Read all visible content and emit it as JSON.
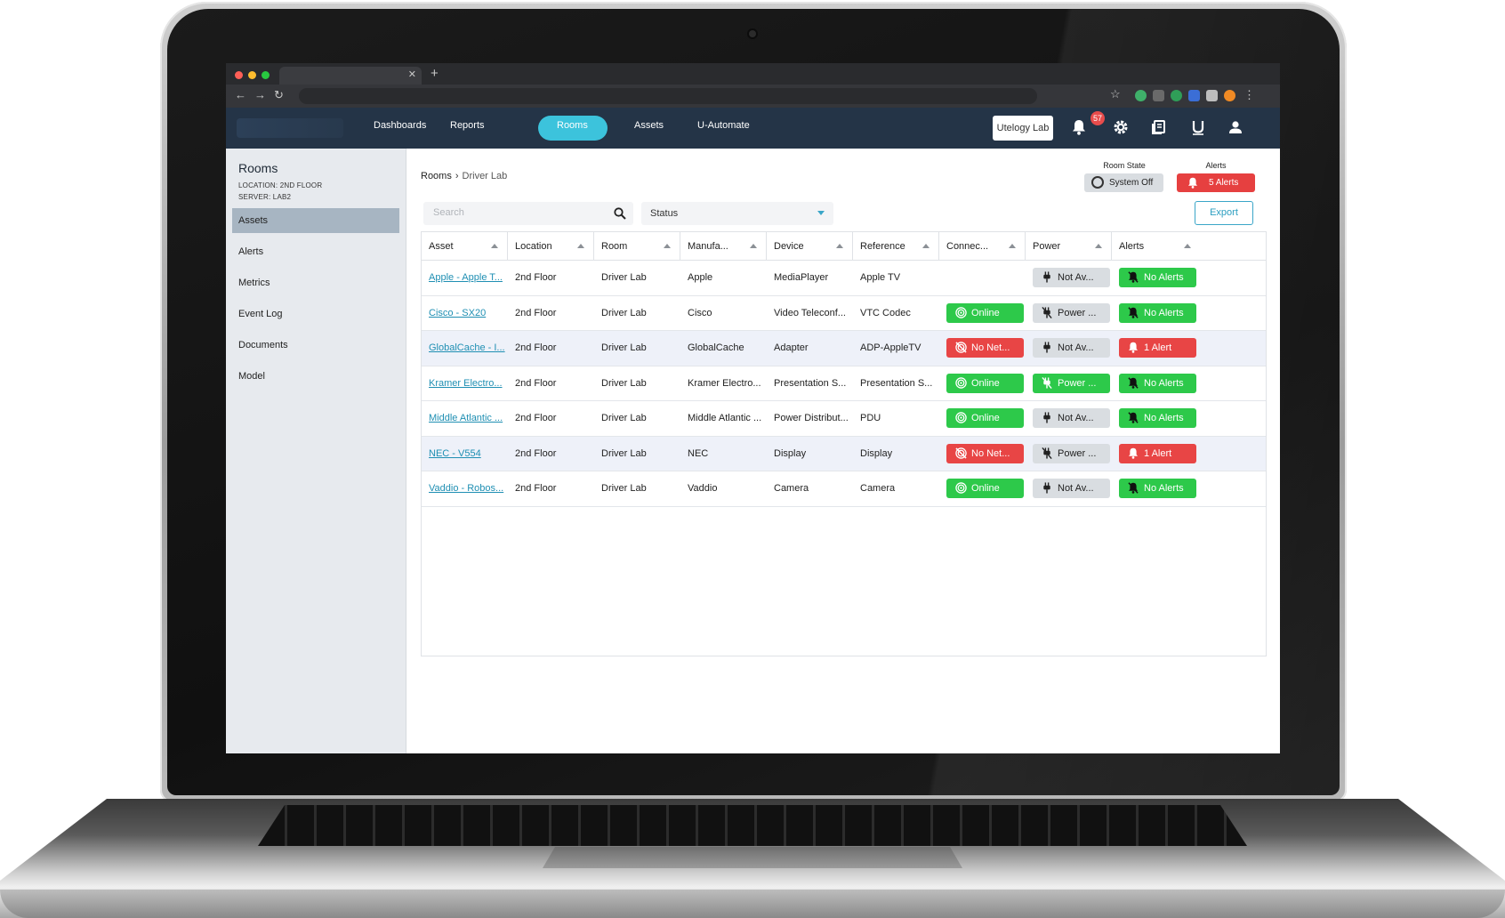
{
  "nav": {
    "items": [
      "Dashboards",
      "Reports",
      "Rooms",
      "Assets",
      "U-Automate"
    ],
    "active": "Rooms",
    "lab_button": "Utelogy Lab",
    "notification_count": "57"
  },
  "sidebar": {
    "title": "Rooms",
    "location": "LOCATION: 2ND FLOOR",
    "server": "SERVER: LAB2",
    "items": [
      "Assets",
      "Alerts",
      "Metrics",
      "Event Log",
      "Documents",
      "Model"
    ],
    "active": "Assets"
  },
  "breadcrumb": {
    "root": "Rooms",
    "current": "Driver Lab"
  },
  "room_state": {
    "label": "Room State",
    "value": "System Off"
  },
  "alerts_summary": {
    "label": "Alerts",
    "value": "5 Alerts"
  },
  "toolbar": {
    "search_placeholder": "Search",
    "status_label": "Status",
    "export_label": "Export"
  },
  "table": {
    "columns": [
      "Asset",
      "Location",
      "Room",
      "Manufa...",
      "Device",
      "Reference",
      "Connec...",
      "Power",
      "Alerts"
    ],
    "rows": [
      {
        "asset": "Apple - Apple T...",
        "location": "2nd Floor",
        "room": "Driver Lab",
        "manufacturer": "Apple",
        "device": "MediaPlayer",
        "reference": "Apple TV",
        "connection": "",
        "connection_state": "none",
        "power": "Not Av...",
        "power_state": "gray",
        "alerts": "No Alerts",
        "alerts_state": "green"
      },
      {
        "asset": "Cisco - SX20",
        "location": "2nd Floor",
        "room": "Driver Lab",
        "manufacturer": "Cisco",
        "device": "Video Teleconf...",
        "reference": "VTC Codec",
        "connection": "Online",
        "connection_state": "green",
        "power": "Power ...",
        "power_state": "gray",
        "alerts": "No Alerts",
        "alerts_state": "green"
      },
      {
        "asset": "GlobalCache - I...",
        "location": "2nd Floor",
        "room": "Driver Lab",
        "manufacturer": "GlobalCache",
        "device": "Adapter",
        "reference": "ADP-AppleTV",
        "connection": "No Net...",
        "connection_state": "red",
        "power": "Not Av...",
        "power_state": "gray",
        "alerts": "1 Alert",
        "alerts_state": "red"
      },
      {
        "asset": "Kramer Electro...",
        "location": "2nd Floor",
        "room": "Driver Lab",
        "manufacturer": "Kramer Electro...",
        "device": "Presentation S...",
        "reference": "Presentation S...",
        "connection": "Online",
        "connection_state": "green",
        "power": "Power ...",
        "power_state": "green",
        "alerts": "No Alerts",
        "alerts_state": "green"
      },
      {
        "asset": "Middle Atlantic ...",
        "location": "2nd Floor",
        "room": "Driver Lab",
        "manufacturer": "Middle Atlantic ...",
        "device": "Power Distribut...",
        "reference": "PDU",
        "connection": "Online",
        "connection_state": "green",
        "power": "Not Av...",
        "power_state": "gray",
        "alerts": "No Alerts",
        "alerts_state": "green"
      },
      {
        "asset": "NEC - V554",
        "location": "2nd Floor",
        "room": "Driver Lab",
        "manufacturer": "NEC",
        "device": "Display",
        "reference": "Display",
        "connection": "No Net...",
        "connection_state": "red",
        "power": "Power ...",
        "power_state": "gray",
        "alerts": "1 Alert",
        "alerts_state": "red"
      },
      {
        "asset": "Vaddio - Robos...",
        "location": "2nd Floor",
        "room": "Driver Lab",
        "manufacturer": "Vaddio",
        "device": "Camera",
        "reference": "Camera",
        "connection": "Online",
        "connection_state": "green",
        "power": "Not Av...",
        "power_state": "gray",
        "alerts": "No Alerts",
        "alerts_state": "green"
      }
    ]
  },
  "colors": {
    "header_bg": "#243447",
    "accent": "#3cc3dc",
    "online": "#2dc94a",
    "alert": "#e84545",
    "link": "#1f8fb3"
  }
}
